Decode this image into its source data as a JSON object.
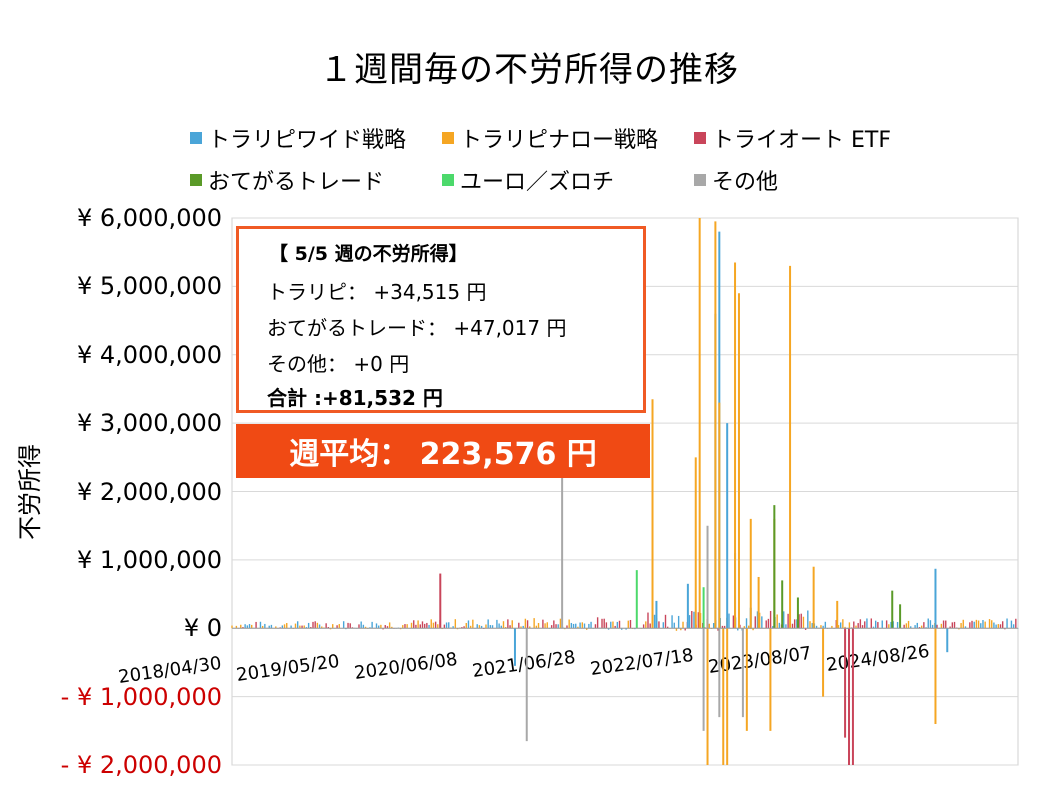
{
  "chart_data": {
    "type": "bar",
    "title": "１週間毎の不労所得の推移",
    "ylabel": "不労所得",
    "xlabel": "",
    "ylim": [
      -2000000,
      6000000
    ],
    "yticks": [
      {
        "value": 6000000,
        "label": "¥ 6,000,000"
      },
      {
        "value": 5000000,
        "label": "¥ 5,000,000"
      },
      {
        "value": 4000000,
        "label": "¥ 4,000,000"
      },
      {
        "value": 3000000,
        "label": "¥ 3,000,000"
      },
      {
        "value": 2000000,
        "label": "¥ 2,000,000"
      },
      {
        "value": 1000000,
        "label": "¥ 1,000,000"
      },
      {
        "value": 0,
        "label": "¥ 0"
      },
      {
        "value": -1000000,
        "label": "- ¥ 1,000,000"
      },
      {
        "value": -2000000,
        "label": "- ¥ 2,000,000"
      }
    ],
    "xticks": [
      "2018/04/30",
      "2019/05/20",
      "2020/06/08",
      "2021/06/28",
      "2022/07/18",
      "2023/08/07",
      "2024/08/26"
    ],
    "grid": true,
    "legend_position": "top",
    "series": [
      {
        "name": "トラリピワイド戦略",
        "color": "#4aa5d8",
        "spikes": [
          [
            0.54,
            400000
          ],
          [
            0.58,
            650000
          ],
          [
            0.615,
            4600000
          ],
          [
            0.62,
            5800000
          ],
          [
            0.63,
            3000000
          ],
          [
            0.64,
            1100000
          ],
          [
            0.66,
            300000
          ],
          [
            0.895,
            870000
          ],
          [
            0.91,
            -350000
          ],
          [
            0.36,
            -550000
          ]
        ]
      },
      {
        "name": "トラリピナロー戦略",
        "color": "#f5a623",
        "spikes": [
          [
            0.535,
            3350000
          ],
          [
            0.59,
            2500000
          ],
          [
            0.595,
            6000000
          ],
          [
            0.605,
            -2000000
          ],
          [
            0.615,
            5950000
          ],
          [
            0.62,
            3300000
          ],
          [
            0.625,
            -2000000
          ],
          [
            0.64,
            5350000
          ],
          [
            0.645,
            4900000
          ],
          [
            0.655,
            -1500000
          ],
          [
            0.67,
            750000
          ],
          [
            0.685,
            -1500000
          ],
          [
            0.71,
            5300000
          ],
          [
            0.74,
            900000
          ],
          [
            0.752,
            -1000000
          ],
          [
            0.77,
            400000
          ],
          [
            0.895,
            -1400000
          ],
          [
            0.63,
            -2000000
          ],
          [
            0.66,
            1600000
          ],
          [
            0.69,
            1600000
          ]
        ]
      },
      {
        "name": "トライオート ETF",
        "color": "#c9455a",
        "spikes": [
          [
            0.265,
            800000
          ],
          [
            0.78,
            -1600000
          ],
          [
            0.785,
            -2000000
          ],
          [
            0.79,
            -2000000
          ]
        ]
      },
      {
        "name": "おてがるトレード",
        "color": "#5a9a28",
        "spikes": [
          [
            0.69,
            1800000
          ],
          [
            0.7,
            700000
          ],
          [
            0.72,
            450000
          ],
          [
            0.84,
            550000
          ],
          [
            0.85,
            350000
          ]
        ]
      },
      {
        "name": "ユーロ／ズロチ",
        "color": "#4cd96b",
        "spikes": [
          [
            0.515,
            850000
          ],
          [
            0.6,
            600000
          ]
        ]
      },
      {
        "name": "その他",
        "color": "#a8a8a8",
        "spikes": [
          [
            0.42,
            2200000
          ],
          [
            0.375,
            -1650000
          ],
          [
            0.6,
            -1500000
          ],
          [
            0.605,
            1500000
          ],
          [
            0.62,
            -1300000
          ],
          [
            0.65,
            -1300000
          ]
        ]
      }
    ]
  },
  "info_box": {
    "heading": "【 5/5 週の不労所得】",
    "lines": [
      "トラリピ： +34,515 円",
      "おてがるトレード： +47,017 円",
      "その他： +0 円"
    ],
    "total": "合計 :+81,532 円"
  },
  "average_banner": "週平均： 223,576 円",
  "colors": {
    "accent": "#f04a14",
    "negative_tick": "#cc0000"
  }
}
